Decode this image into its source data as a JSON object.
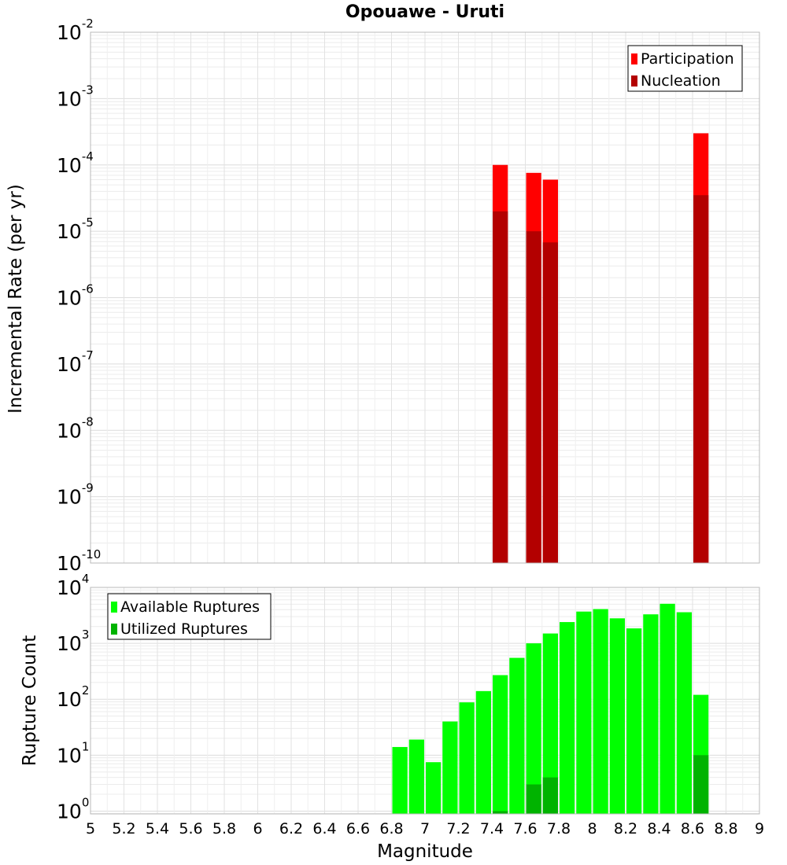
{
  "chart_data": {
    "title": "Opouawe - Uruti",
    "xlabel": "Magnitude",
    "xlim": [
      5,
      9
    ],
    "x_ticks": [
      "5",
      "5.2",
      "5.4",
      "5.6",
      "5.8",
      "6",
      "6.2",
      "6.4",
      "6.6",
      "6.8",
      "7",
      "7.2",
      "7.4",
      "7.6",
      "7.8",
      "8",
      "8.2",
      "8.4",
      "8.6",
      "8.8",
      "9"
    ],
    "bin_width": 0.1,
    "panels": [
      {
        "type": "bar",
        "y_scale": "log",
        "ylabel": "Incremental Rate (per yr)",
        "ylim_exp": [
          -10,
          -2
        ],
        "y_ticks": [
          {
            "base": "10",
            "exp": "-10"
          },
          {
            "base": "10",
            "exp": "-9"
          },
          {
            "base": "10",
            "exp": "-8"
          },
          {
            "base": "10",
            "exp": "-7"
          },
          {
            "base": "10",
            "exp": "-6"
          },
          {
            "base": "10",
            "exp": "-5"
          },
          {
            "base": "10",
            "exp": "-4"
          },
          {
            "base": "10",
            "exp": "-3"
          },
          {
            "base": "10",
            "exp": "-2"
          }
        ],
        "legend": {
          "position": "top-right"
        },
        "series": [
          {
            "name": "Participation",
            "color": "#ff0000",
            "x": [
              7.45,
              7.65,
              7.75,
              8.65
            ],
            "values": [
              0.0001,
              7.6e-05,
              6e-05,
              0.0003
            ]
          },
          {
            "name": "Nucleation",
            "color": "#b30000",
            "x": [
              7.45,
              7.65,
              7.75,
              8.65
            ],
            "values": [
              2e-05,
              1e-05,
              6.8e-06,
              3.5e-05
            ]
          }
        ]
      },
      {
        "type": "bar",
        "y_scale": "log",
        "ylabel": "Rupture Count",
        "ylim_exp": [
          -0.05,
          4
        ],
        "y_ticks": [
          {
            "base": "10",
            "exp": "0"
          },
          {
            "base": "10",
            "exp": "1"
          },
          {
            "base": "10",
            "exp": "2"
          },
          {
            "base": "10",
            "exp": "3"
          },
          {
            "base": "10",
            "exp": "4"
          }
        ],
        "legend": {
          "position": "top-left"
        },
        "series": [
          {
            "name": "Available Ruptures",
            "color": "#00ff00",
            "x": [
              6.85,
              6.95,
              7.05,
              7.15,
              7.25,
              7.35,
              7.45,
              7.55,
              7.65,
              7.75,
              7.85,
              7.95,
              8.05,
              8.15,
              8.25,
              8.35,
              8.45,
              8.55,
              8.65
            ],
            "values": [
              14,
              19,
              7.5,
              40,
              88,
              140,
              270,
              550,
              1000,
              1500,
              2400,
              3700,
              4100,
              2800,
              1850,
              3300,
              5100,
              3600,
              120
            ]
          },
          {
            "name": "Utilized Ruptures",
            "color": "#00b300",
            "x": [
              7.45,
              7.65,
              7.75,
              8.65
            ],
            "values": [
              1,
              3,
              4,
              10
            ]
          }
        ]
      }
    ]
  }
}
